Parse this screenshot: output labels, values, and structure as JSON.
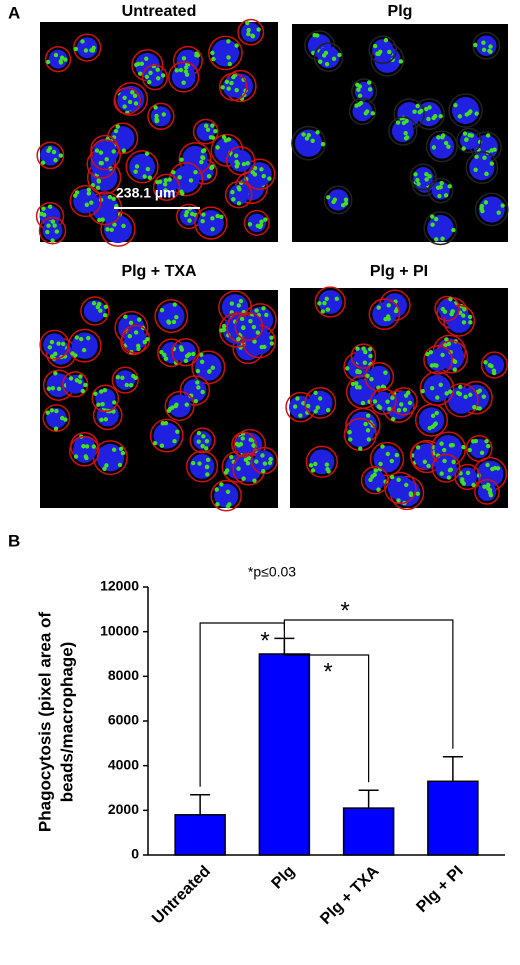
{
  "panel_a": {
    "label": "A",
    "images": [
      {
        "title": "Untreated"
      },
      {
        "title": "Plg"
      },
      {
        "title": "Plg + TXA"
      },
      {
        "title": "Plg + PI"
      }
    ],
    "scale_bar": "238.1 µm"
  },
  "chart_data": {
    "type": "bar",
    "panel_label": "B",
    "y_label": [
      "Phagocytosis (pixel area of",
      "beads/macrophage)"
    ],
    "categories": [
      "Untreated",
      "Plg",
      "Plg + TXA",
      "Plg + PI"
    ],
    "values": [
      1800,
      9000,
      2100,
      3300
    ],
    "errors": [
      900,
      700,
      800,
      1100
    ],
    "color": "#0000ff",
    "ylim": [
      0,
      12000
    ],
    "yticks": [
      0,
      2000,
      4000,
      6000,
      8000,
      10000,
      12000
    ],
    "annotations": {
      "note": "*p≤0.03",
      "stars": [
        "*",
        "*",
        "*"
      ]
    }
  }
}
